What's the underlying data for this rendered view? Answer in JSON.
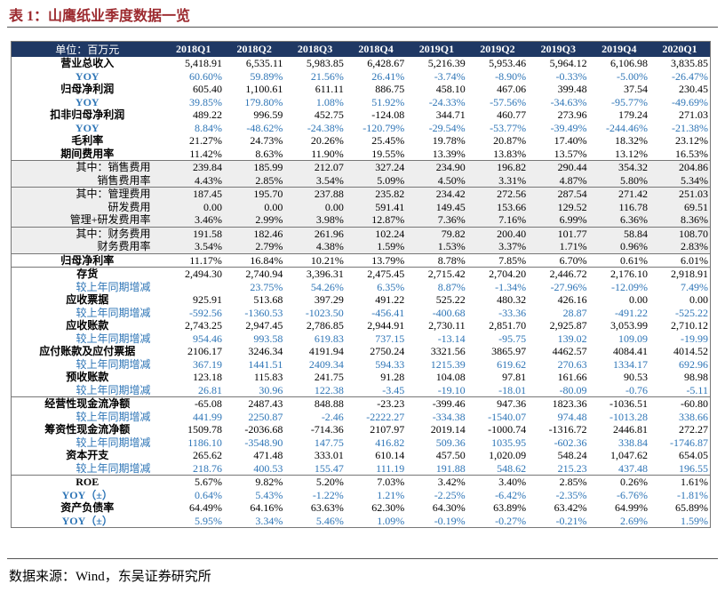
{
  "title": "表 1：山鹰纸业季度数据一览",
  "table": {
    "corner": "单位：百万元",
    "columns": [
      "2018Q1",
      "2018Q2",
      "2018Q3",
      "2018Q4",
      "2019Q1",
      "2019Q2",
      "2019Q3",
      "2019Q4",
      "2020Q1"
    ],
    "rows": [
      {
        "label": "营业总收入",
        "values": [
          "5,418.91",
          "6,535.11",
          "5,983.85",
          "6,428.67",
          "5,216.39",
          "5,953.46",
          "5,964.12",
          "6,106.98",
          "3,835.85"
        ]
      },
      {
        "label": "YOY",
        "values": [
          "60.60%",
          "59.89%",
          "21.56%",
          "26.41%",
          "-3.74%",
          "-8.90%",
          "-0.33%",
          "-5.00%",
          "-26.47%"
        ]
      },
      {
        "label": "归母净利润",
        "values": [
          "605.40",
          "1,100.61",
          "611.11",
          "886.75",
          "458.10",
          "467.06",
          "399.48",
          "37.54",
          "230.45"
        ]
      },
      {
        "label": "YOY",
        "values": [
          "39.85%",
          "179.80%",
          "1.08%",
          "51.92%",
          "-24.33%",
          "-57.56%",
          "-34.63%",
          "-95.77%",
          "-49.69%"
        ]
      },
      {
        "label": "扣非归母净利润",
        "values": [
          "489.22",
          "996.59",
          "452.75",
          "-124.08",
          "344.71",
          "460.77",
          "273.96",
          "179.24",
          "271.03"
        ]
      },
      {
        "label": "YOY",
        "values": [
          "8.84%",
          "-48.62%",
          "-24.38%",
          "-120.79%",
          "-29.54%",
          "-53.77%",
          "-39.49%",
          "-244.46%",
          "-21.38%"
        ]
      },
      {
        "label": "毛利率",
        "values": [
          "21.27%",
          "24.73%",
          "20.26%",
          "25.45%",
          "19.78%",
          "20.87%",
          "17.40%",
          "18.32%",
          "23.12%"
        ]
      },
      {
        "label": "期间费用率",
        "values": [
          "11.42%",
          "8.63%",
          "11.90%",
          "19.55%",
          "13.39%",
          "13.83%",
          "13.57%",
          "13.12%",
          "16.53%"
        ]
      },
      {
        "label": "其中：销售费用",
        "values": [
          "239.84",
          "185.99",
          "212.07",
          "327.24",
          "234.90",
          "196.82",
          "290.44",
          "354.32",
          "204.86"
        ]
      },
      {
        "label": "销售费用率",
        "values": [
          "4.43%",
          "2.85%",
          "3.54%",
          "5.09%",
          "4.50%",
          "3.31%",
          "4.87%",
          "5.80%",
          "5.34%"
        ]
      },
      {
        "label": "其中：管理费用",
        "values": [
          "187.45",
          "195.70",
          "237.88",
          "235.82",
          "234.42",
          "272.56",
          "287.54",
          "271.42",
          "251.03"
        ]
      },
      {
        "label": "研发费用",
        "values": [
          "0.00",
          "0.00",
          "0.00",
          "591.41",
          "149.45",
          "153.66",
          "129.52",
          "116.78",
          "69.51"
        ]
      },
      {
        "label": "管理+研发费用率",
        "values": [
          "3.46%",
          "2.99%",
          "3.98%",
          "12.87%",
          "7.36%",
          "7.16%",
          "6.99%",
          "6.36%",
          "8.36%"
        ]
      },
      {
        "label": "其中：财务费用",
        "values": [
          "191.58",
          "182.46",
          "261.96",
          "102.24",
          "79.82",
          "200.40",
          "101.77",
          "58.84",
          "108.70"
        ]
      },
      {
        "label": "财务费用率",
        "values": [
          "3.54%",
          "2.79%",
          "4.38%",
          "1.59%",
          "1.53%",
          "3.37%",
          "1.71%",
          "0.96%",
          "2.83%"
        ]
      },
      {
        "label": "归母净利率",
        "values": [
          "11.17%",
          "16.84%",
          "10.21%",
          "13.79%",
          "8.78%",
          "7.85%",
          "6.70%",
          "0.61%",
          "6.01%"
        ]
      },
      {
        "label": "存货",
        "values": [
          "2,494.30",
          "2,740.94",
          "3,396.31",
          "2,475.45",
          "2,715.42",
          "2,704.20",
          "2,446.72",
          "2,176.10",
          "2,918.91"
        ]
      },
      {
        "label": "较上年同期增减",
        "values": [
          null,
          "23.75%",
          "54.26%",
          "6.35%",
          "8.87%",
          "-1.34%",
          "-27.96%",
          "-12.09%",
          "7.49%"
        ]
      },
      {
        "label": "应收票据",
        "values": [
          "925.91",
          "513.68",
          "397.29",
          "491.22",
          "525.22",
          "480.32",
          "426.16",
          "0.00",
          "0.00"
        ]
      },
      {
        "label": "较上年同期增减",
        "values": [
          "-592.56",
          "-1360.53",
          "-1023.50",
          "-456.41",
          "-400.68",
          "-33.36",
          "28.87",
          "-491.22",
          "-525.22"
        ]
      },
      {
        "label": "应收账款",
        "values": [
          "2,743.25",
          "2,947.45",
          "2,786.85",
          "2,944.91",
          "2,730.11",
          "2,851.70",
          "2,925.87",
          "3,053.99",
          "2,710.12"
        ]
      },
      {
        "label": "较上年同期增减",
        "values": [
          "954.46",
          "993.58",
          "619.83",
          "737.15",
          "-13.14",
          "-95.75",
          "139.02",
          "109.09",
          "-19.99"
        ]
      },
      {
        "label": "应付账款及应付票据",
        "values": [
          "2106.17",
          "3246.34",
          "4191.94",
          "2750.24",
          "3321.56",
          "3865.97",
          "4462.57",
          "4084.41",
          "4014.52"
        ]
      },
      {
        "label": "较上年同期增减",
        "values": [
          "367.19",
          "1441.51",
          "2409.34",
          "594.33",
          "1215.39",
          "619.62",
          "270.63",
          "1334.17",
          "692.96"
        ]
      },
      {
        "label": "预收账款",
        "values": [
          "123.18",
          "115.83",
          "241.75",
          "91.28",
          "104.08",
          "97.81",
          "161.66",
          "90.53",
          "98.98"
        ]
      },
      {
        "label": "较上年同期增减",
        "values": [
          "26.81",
          "30.96",
          "122.38",
          "-3.45",
          "-19.10",
          "-18.01",
          "-80.09",
          "-0.76",
          "-5.11"
        ]
      },
      {
        "label": "经营性现金流净额",
        "values": [
          "-65.08",
          "2487.43",
          "848.88",
          "-23.23",
          "-399.46",
          "947.36",
          "1823.36",
          "-1036.51",
          "-60.80"
        ]
      },
      {
        "label": "较上年同期增减",
        "values": [
          "441.99",
          "2250.87",
          "-2.46",
          "-2222.27",
          "-334.38",
          "-1540.07",
          "974.48",
          "-1013.28",
          "338.66"
        ]
      },
      {
        "label": "筹资性现金流净额",
        "values": [
          "1509.78",
          "-2036.68",
          "-714.36",
          "2107.97",
          "2019.14",
          "-1000.74",
          "-1316.72",
          "2446.81",
          "272.27"
        ]
      },
      {
        "label": "较上年同期增减",
        "values": [
          "1186.10",
          "-3548.90",
          "147.75",
          "416.82",
          "509.36",
          "1035.95",
          "-602.36",
          "338.84",
          "-1746.87"
        ]
      },
      {
        "label": "资本开支",
        "values": [
          "265.62",
          "471.48",
          "333.01",
          "610.14",
          "457.50",
          "1,020.09",
          "548.24",
          "1,047.62",
          "654.05"
        ]
      },
      {
        "label": "较上年同期增减",
        "values": [
          "218.76",
          "400.53",
          "155.47",
          "111.19",
          "191.88",
          "548.62",
          "215.23",
          "437.48",
          "196.55"
        ]
      },
      {
        "label": "ROE",
        "values": [
          "5.67%",
          "9.82%",
          "5.20%",
          "7.03%",
          "3.42%",
          "3.40%",
          "2.85%",
          "0.26%",
          "1.61%"
        ]
      },
      {
        "label": "YOY（±）",
        "values": [
          "0.64%",
          "5.43%",
          "-1.22%",
          "1.21%",
          "-2.25%",
          "-6.42%",
          "-2.35%",
          "-6.76%",
          "-1.81%"
        ]
      },
      {
        "label": "资产负债率",
        "values": [
          "64.49%",
          "64.16%",
          "63.63%",
          "62.30%",
          "64.30%",
          "63.89%",
          "63.42%",
          "64.99%",
          "65.89%"
        ]
      },
      {
        "label": "YOY（±）",
        "values": [
          "5.95%",
          "3.34%",
          "5.46%",
          "1.09%",
          "-0.19%",
          "-0.27%",
          "-0.21%",
          "2.69%",
          "1.59%"
        ]
      }
    ]
  },
  "source": "数据来源：Wind，东吴证券研究所"
}
